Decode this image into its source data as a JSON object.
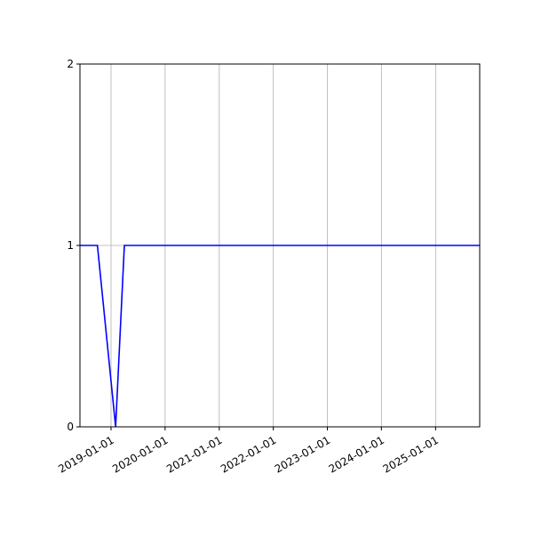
{
  "chart_data": {
    "type": "line",
    "title": "",
    "xlabel": "",
    "ylabel": "",
    "x_type": "date",
    "xlim": [
      "2018-06-05",
      "2025-10-26"
    ],
    "ylim": [
      0,
      2
    ],
    "x_ticks": [
      "2019-01-01",
      "2020-01-01",
      "2021-01-01",
      "2022-01-01",
      "2023-01-01",
      "2024-01-01",
      "2025-01-01"
    ],
    "y_ticks": [
      "0",
      "1",
      "2"
    ],
    "grid": "on",
    "legend": "none",
    "series": [
      {
        "color": "#0000ff",
        "x": [
          "2018-06-05",
          "2018-10-01",
          "2019-02-01",
          "2019-04-01",
          "2025-10-26"
        ],
        "y": [
          1,
          1,
          0,
          1,
          1
        ]
      }
    ]
  }
}
